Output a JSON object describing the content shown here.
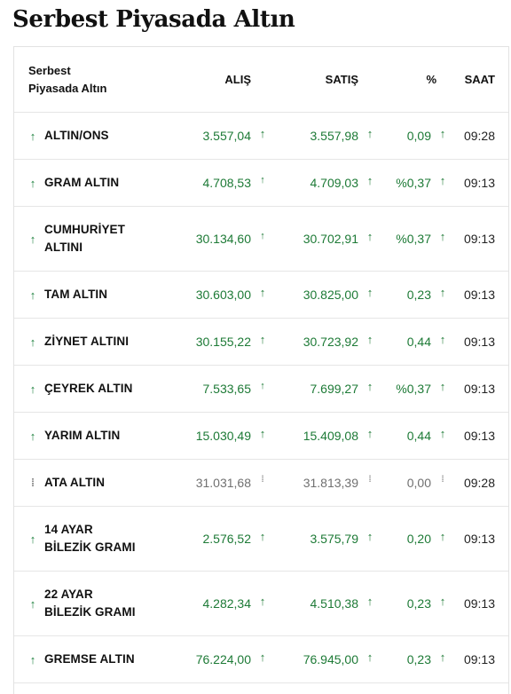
{
  "page_title": "Serbest Piyasada Altın",
  "table": {
    "headers": {
      "name_line1": "Serbest",
      "name_line2": "Piyasada Altın",
      "alis": "ALIŞ",
      "satis": "SATIŞ",
      "pct": "%",
      "saat": "SAAT"
    },
    "rows": [
      {
        "name1": "ALTIN/ONS",
        "name2": "",
        "trend": "up",
        "alis": "3.557,04",
        "satis": "3.557,98",
        "pct": "0,09",
        "saat": "09:28"
      },
      {
        "name1": "GRAM ALTIN",
        "name2": "",
        "trend": "up",
        "alis": "4.708,53",
        "satis": "4.709,03",
        "pct": "%0,37",
        "saat": "09:13"
      },
      {
        "name1": "CUMHURİYET",
        "name2": "ALTINI",
        "trend": "up",
        "alis": "30.134,60",
        "satis": "30.702,91",
        "pct": "%0,37",
        "saat": "09:13"
      },
      {
        "name1": "TAM ALTIN",
        "name2": "",
        "trend": "up",
        "alis": "30.603,00",
        "satis": "30.825,00",
        "pct": "0,23",
        "saat": "09:13"
      },
      {
        "name1": "ZİYNET ALTINI",
        "name2": "",
        "trend": "up",
        "alis": "30.155,22",
        "satis": "30.723,92",
        "pct": "0,44",
        "saat": "09:13"
      },
      {
        "name1": "ÇEYREK ALTIN",
        "name2": "",
        "trend": "up",
        "alis": "7.533,65",
        "satis": "7.699,27",
        "pct": "%0,37",
        "saat": "09:13"
      },
      {
        "name1": "YARIM ALTIN",
        "name2": "",
        "trend": "up",
        "alis": "15.030,49",
        "satis": "15.409,08",
        "pct": "0,44",
        "saat": "09:13"
      },
      {
        "name1": "ATA ALTIN",
        "name2": "",
        "trend": "neutral",
        "alis": "31.031,68",
        "satis": "31.813,39",
        "pct": "0,00",
        "saat": "09:28"
      },
      {
        "name1": "14 AYAR",
        "name2": "BİLEZİK GRAMI",
        "trend": "up",
        "alis": "2.576,52",
        "satis": "3.575,79",
        "pct": "0,20",
        "saat": "09:13"
      },
      {
        "name1": "22 AYAR",
        "name2": "BİLEZİK GRAMI",
        "trend": "up",
        "alis": "4.282,34",
        "satis": "4.510,38",
        "pct": "0,23",
        "saat": "09:13"
      },
      {
        "name1": "GREMSE ALTIN",
        "name2": "",
        "trend": "up",
        "alis": "76.224,00",
        "satis": "76.945,00",
        "pct": "0,23",
        "saat": "09:13"
      }
    ]
  },
  "icons": {
    "up": "arrow-up-icon",
    "neutral": "dots-vertical-icon"
  },
  "colors": {
    "up_green": "#1d7a36",
    "neutral_gray": "#707070",
    "border": "#e2e2e2"
  }
}
